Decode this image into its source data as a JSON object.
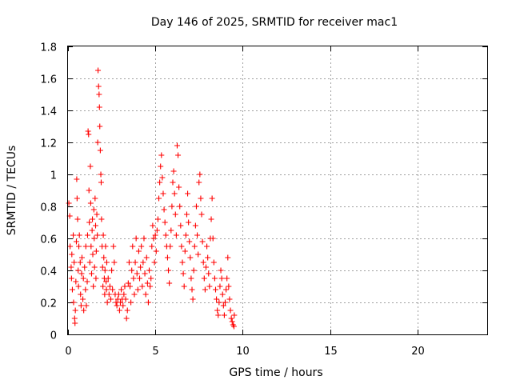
{
  "chart_data": {
    "type": "scatter",
    "title": "Day 146 of 2025, SRMTID for receiver mac1",
    "xlabel": "GPS time / hours",
    "ylabel": "SRMTID / TECUs",
    "xlim": [
      0,
      24
    ],
    "ylim": [
      0,
      1.8
    ],
    "xticks": [
      0,
      5,
      10,
      15,
      20
    ],
    "yticks": [
      0,
      0.2,
      0.4,
      0.6,
      0.8,
      1,
      1.2,
      1.4,
      1.6,
      1.8
    ],
    "xtick_labels": [
      "0",
      "5",
      "10",
      "15",
      "20"
    ],
    "ytick_labels": [
      "0",
      "0.2",
      "0.4",
      "0.6",
      "0.8",
      "1",
      "1.2",
      "1.4",
      "1.6",
      "1.8"
    ],
    "grid": true,
    "marker": "+",
    "color": "#ff0000",
    "series": [
      {
        "name": "SRMTID",
        "points": [
          [
            0.05,
            0.82
          ],
          [
            0.1,
            0.74
          ],
          [
            0.12,
            0.55
          ],
          [
            0.18,
            0.42
          ],
          [
            0.2,
            0.35
          ],
          [
            0.22,
            0.5
          ],
          [
            0.25,
            0.28
          ],
          [
            0.3,
            0.62
          ],
          [
            0.32,
            0.2
          ],
          [
            0.35,
            0.45
          ],
          [
            0.38,
            0.1
          ],
          [
            0.4,
            0.07
          ],
          [
            0.42,
            0.15
          ],
          [
            0.45,
            0.33
          ],
          [
            0.48,
            0.58
          ],
          [
            0.5,
            0.97
          ],
          [
            0.52,
            0.85
          ],
          [
            0.55,
            0.72
          ],
          [
            0.58,
            0.4
          ],
          [
            0.6,
            0.3
          ],
          [
            0.62,
            0.55
          ],
          [
            0.65,
            0.62
          ],
          [
            0.7,
            0.45
          ],
          [
            0.72,
            0.25
          ],
          [
            0.75,
            0.18
          ],
          [
            0.78,
            0.38
          ],
          [
            0.8,
            0.48
          ],
          [
            0.85,
            0.22
          ],
          [
            0.88,
            0.35
          ],
          [
            0.9,
            0.15
          ],
          [
            0.95,
            0.42
          ],
          [
            1.0,
            0.28
          ],
          [
            1.02,
            0.55
          ],
          [
            1.05,
            0.18
          ],
          [
            1.1,
            0.33
          ],
          [
            1.12,
            0.62
          ],
          [
            1.15,
            1.27
          ],
          [
            1.18,
            1.25
          ],
          [
            1.2,
            0.9
          ],
          [
            1.22,
            0.7
          ],
          [
            1.25,
            0.45
          ],
          [
            1.28,
            1.05
          ],
          [
            1.3,
            0.82
          ],
          [
            1.32,
            0.55
          ],
          [
            1.35,
            0.38
          ],
          [
            1.38,
            0.65
          ],
          [
            1.4,
            0.72
          ],
          [
            1.42,
            0.5
          ],
          [
            1.45,
            0.3
          ],
          [
            1.48,
            0.78
          ],
          [
            1.5,
            0.6
          ],
          [
            1.52,
            0.42
          ],
          [
            1.55,
            0.85
          ],
          [
            1.58,
            0.68
          ],
          [
            1.6,
            0.35
          ],
          [
            1.62,
            0.52
          ],
          [
            1.65,
            0.75
          ],
          [
            1.68,
            0.62
          ],
          [
            1.7,
            1.2
          ],
          [
            1.72,
            1.65
          ],
          [
            1.75,
            1.55
          ],
          [
            1.78,
            1.5
          ],
          [
            1.8,
            1.42
          ],
          [
            1.82,
            1.3
          ],
          [
            1.85,
            1.15
          ],
          [
            1.88,
            1.0
          ],
          [
            1.9,
            0.95
          ],
          [
            1.92,
            0.72
          ],
          [
            1.95,
            0.55
          ],
          [
            1.98,
            0.42
          ],
          [
            2.0,
            0.3
          ],
          [
            2.02,
            0.62
          ],
          [
            2.05,
            0.48
          ],
          [
            2.08,
            0.35
          ],
          [
            2.1,
            0.25
          ],
          [
            2.12,
            0.4
          ],
          [
            2.15,
            0.55
          ],
          [
            2.18,
            0.33
          ],
          [
            2.2,
            0.28
          ],
          [
            2.22,
            0.45
          ],
          [
            2.25,
            0.2
          ],
          [
            2.3,
            0.35
          ],
          [
            2.35,
            0.25
          ],
          [
            2.4,
            0.3
          ],
          [
            2.45,
            0.22
          ],
          [
            2.5,
            0.4
          ],
          [
            2.55,
            0.28
          ],
          [
            2.6,
            0.55
          ],
          [
            2.65,
            0.45
          ],
          [
            2.7,
            0.25
          ],
          [
            2.75,
            0.2
          ],
          [
            2.8,
            0.18
          ],
          [
            2.85,
            0.22
          ],
          [
            2.9,
            0.25
          ],
          [
            2.95,
            0.15
          ],
          [
            3.0,
            0.2
          ],
          [
            3.05,
            0.28
          ],
          [
            3.1,
            0.22
          ],
          [
            3.15,
            0.18
          ],
          [
            3.2,
            0.25
          ],
          [
            3.25,
            0.3
          ],
          [
            3.3,
            0.22
          ],
          [
            3.35,
            0.1
          ],
          [
            3.4,
            0.15
          ],
          [
            3.45,
            0.32
          ],
          [
            3.5,
            0.45
          ],
          [
            3.55,
            0.3
          ],
          [
            3.6,
            0.2
          ],
          [
            3.65,
            0.4
          ],
          [
            3.7,
            0.55
          ],
          [
            3.75,
            0.35
          ],
          [
            3.8,
            0.25
          ],
          [
            3.85,
            0.45
          ],
          [
            3.9,
            0.6
          ],
          [
            3.95,
            0.38
          ],
          [
            4.0,
            0.28
          ],
          [
            4.05,
            0.52
          ],
          [
            4.1,
            0.35
          ],
          [
            4.15,
            0.42
          ],
          [
            4.2,
            0.55
          ],
          [
            4.25,
            0.3
          ],
          [
            4.3,
            0.45
          ],
          [
            4.35,
            0.6
          ],
          [
            4.4,
            0.38
          ],
          [
            4.45,
            0.25
          ],
          [
            4.5,
            0.48
          ],
          [
            4.55,
            0.32
          ],
          [
            4.6,
            0.2
          ],
          [
            4.65,
            0.4
          ],
          [
            4.7,
            0.3
          ],
          [
            4.75,
            0.35
          ],
          [
            4.8,
            0.55
          ],
          [
            4.85,
            0.68
          ],
          [
            4.9,
            0.6
          ],
          [
            4.95,
            0.45
          ],
          [
            5.0,
            0.62
          ],
          [
            5.05,
            0.52
          ],
          [
            5.1,
            0.65
          ],
          [
            5.15,
            0.72
          ],
          [
            5.2,
            0.85
          ],
          [
            5.25,
            0.95
          ],
          [
            5.3,
            1.05
          ],
          [
            5.35,
            1.12
          ],
          [
            5.4,
            0.98
          ],
          [
            5.45,
            0.88
          ],
          [
            5.5,
            0.78
          ],
          [
            5.55,
            0.7
          ],
          [
            5.6,
            0.62
          ],
          [
            5.65,
            0.55
          ],
          [
            5.7,
            0.48
          ],
          [
            5.75,
            0.4
          ],
          [
            5.8,
            0.32
          ],
          [
            5.85,
            0.55
          ],
          [
            5.9,
            0.65
          ],
          [
            5.95,
            0.8
          ],
          [
            6.0,
            0.95
          ],
          [
            6.05,
            1.02
          ],
          [
            6.1,
            0.88
          ],
          [
            6.15,
            0.75
          ],
          [
            6.2,
            0.62
          ],
          [
            6.25,
            1.18
          ],
          [
            6.3,
            1.12
          ],
          [
            6.35,
            0.92
          ],
          [
            6.4,
            0.8
          ],
          [
            6.45,
            0.68
          ],
          [
            6.5,
            0.55
          ],
          [
            6.55,
            0.45
          ],
          [
            6.6,
            0.38
          ],
          [
            6.65,
            0.3
          ],
          [
            6.7,
            0.52
          ],
          [
            6.75,
            0.62
          ],
          [
            6.8,
            0.75
          ],
          [
            6.85,
            0.88
          ],
          [
            6.9,
            0.7
          ],
          [
            6.95,
            0.58
          ],
          [
            7.0,
            0.48
          ],
          [
            7.05,
            0.35
          ],
          [
            7.1,
            0.28
          ],
          [
            7.15,
            0.22
          ],
          [
            7.2,
            0.4
          ],
          [
            7.25,
            0.55
          ],
          [
            7.3,
            0.68
          ],
          [
            7.35,
            0.8
          ],
          [
            7.4,
            0.62
          ],
          [
            7.45,
            0.5
          ],
          [
            7.5,
            0.95
          ],
          [
            7.55,
            1.0
          ],
          [
            7.6,
            0.85
          ],
          [
            7.65,
            0.75
          ],
          [
            7.7,
            0.58
          ],
          [
            7.75,
            0.45
          ],
          [
            7.8,
            0.35
          ],
          [
            7.85,
            0.28
          ],
          [
            7.9,
            0.42
          ],
          [
            7.95,
            0.55
          ],
          [
            8.0,
            0.48
          ],
          [
            8.05,
            0.38
          ],
          [
            8.1,
            0.3
          ],
          [
            8.15,
            0.6
          ],
          [
            8.2,
            0.72
          ],
          [
            8.25,
            0.85
          ],
          [
            8.3,
            0.6
          ],
          [
            8.35,
            0.45
          ],
          [
            8.4,
            0.35
          ],
          [
            8.45,
            0.28
          ],
          [
            8.5,
            0.22
          ],
          [
            8.55,
            0.15
          ],
          [
            8.6,
            0.12
          ],
          [
            8.65,
            0.2
          ],
          [
            8.7,
            0.3
          ],
          [
            8.75,
            0.4
          ],
          [
            8.8,
            0.35
          ],
          [
            8.85,
            0.25
          ],
          [
            8.9,
            0.18
          ],
          [
            8.95,
            0.12
          ],
          [
            9.0,
            0.2
          ],
          [
            9.05,
            0.28
          ],
          [
            9.1,
            0.35
          ],
          [
            9.15,
            0.48
          ],
          [
            9.2,
            0.3
          ],
          [
            9.25,
            0.22
          ],
          [
            9.3,
            0.15
          ],
          [
            9.35,
            0.1
          ],
          [
            9.4,
            0.08
          ],
          [
            9.45,
            0.06
          ],
          [
            9.5,
            0.05
          ],
          [
            9.52,
            0.12
          ]
        ]
      }
    ]
  }
}
